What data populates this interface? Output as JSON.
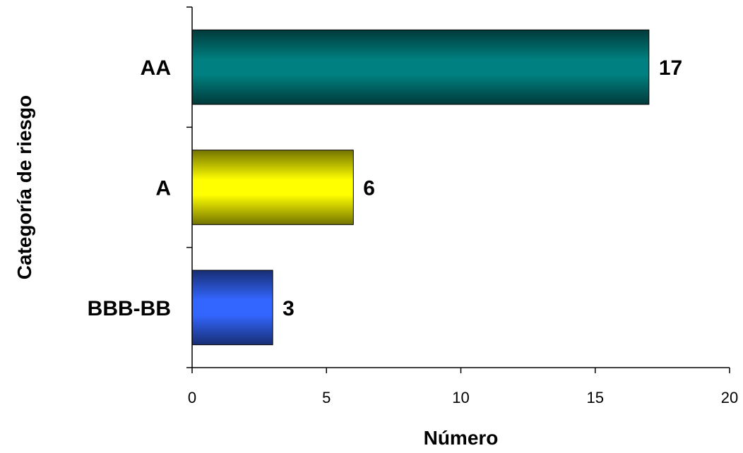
{
  "chart_data": {
    "type": "bar",
    "orientation": "horizontal",
    "categories": [
      "AA",
      "A",
      "BBB-BB"
    ],
    "values": [
      17,
      6,
      3
    ],
    "value_labels": [
      "17",
      "6",
      "3"
    ],
    "colors": [
      "#008080",
      "#ffff00",
      "#3366ff"
    ],
    "xlabel": "Número",
    "ylabel": "Categoría de riesgo",
    "xlim": [
      0,
      20
    ],
    "xticks": [
      "0",
      "5",
      "10",
      "15",
      "20"
    ],
    "grid": false,
    "legend": "none"
  }
}
